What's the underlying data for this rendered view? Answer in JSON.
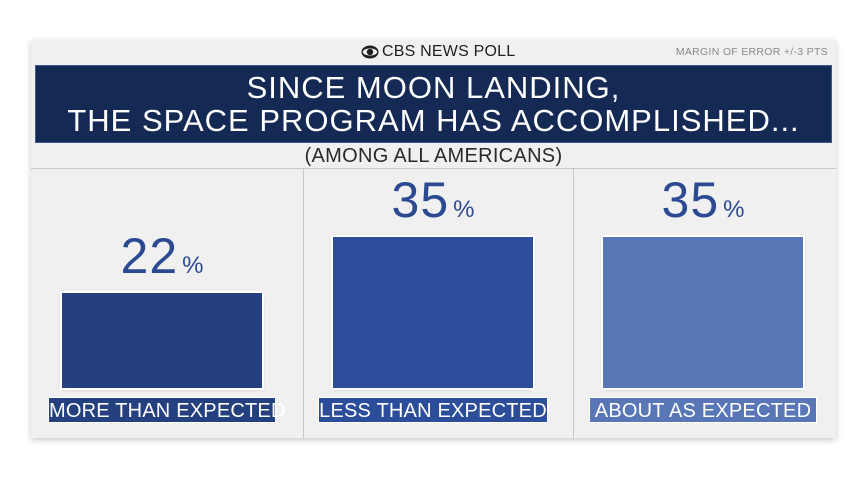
{
  "header": {
    "brand": "CBS NEWS POLL",
    "margin": "MARGIN OF ERROR +/-3 PTS"
  },
  "title": {
    "line1": "SINCE MOON LANDING,",
    "line2": "THE SPACE PROGRAM HAS ACCOMPLISHED..."
  },
  "subtitle": "(AMONG ALL AMERICANS)",
  "colors": {
    "banner": "#142a55",
    "more": "#24407f",
    "less": "#2c4d9a",
    "about": "#5977b6",
    "pct_text": "#2b4a92"
  },
  "chart_data": {
    "type": "bar",
    "title": "SINCE MOON LANDING, THE SPACE PROGRAM HAS ACCOMPLISHED...",
    "subtitle": "(AMONG ALL AMERICANS)",
    "categories": [
      "MORE THAN EXPECTED",
      "LESS THAN EXPECTED",
      "ABOUT AS EXPECTED"
    ],
    "values": [
      22,
      35,
      35
    ],
    "value_labels": [
      "22",
      "35",
      "35"
    ],
    "unit": "%",
    "ylim": [
      0,
      45
    ],
    "grid": false,
    "legend": "none"
  }
}
